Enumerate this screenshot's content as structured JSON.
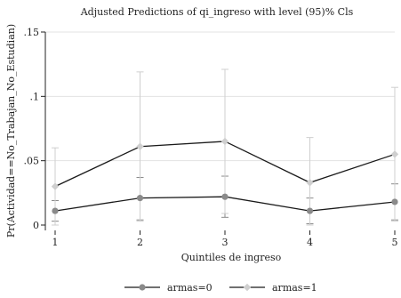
{
  "chart_data": {
    "type": "line",
    "title": "Adjusted Predictions of qi_ingreso with level (95)% Cls",
    "xlabel": "Quintiles de ingreso",
    "ylabel": "Pr(Actividad==No_Trabajan_No_Estudian)",
    "x": [
      1,
      2,
      3,
      4,
      5
    ],
    "xlim": [
      1,
      5
    ],
    "ylim": [
      0,
      0.15
    ],
    "yticks": [
      0,
      0.05,
      0.1,
      0.15
    ],
    "ytick_labels": [
      "0",
      ".05",
      ".1",
      ".15"
    ],
    "grid": true,
    "legend_position": "bottom",
    "series": [
      {
        "name": "armas=0",
        "color": "#8a8a8a",
        "line_color": "#1a1a1a",
        "values": [
          0.011,
          0.021,
          0.022,
          0.011,
          0.018
        ],
        "ci_lower": [
          0.003,
          0.004,
          0.006,
          0.001,
          0.004
        ],
        "ci_upper": [
          0.019,
          0.037,
          0.038,
          0.021,
          0.032
        ]
      },
      {
        "name": "armas=1",
        "color": "#cfcfcf",
        "line_color": "#1a1a1a",
        "values": [
          0.03,
          0.061,
          0.065,
          0.033,
          0.055
        ],
        "ci_lower": [
          0.0,
          0.003,
          0.009,
          0.0,
          0.003
        ],
        "ci_upper": [
          0.06,
          0.119,
          0.121,
          0.068,
          0.107
        ]
      }
    ]
  }
}
